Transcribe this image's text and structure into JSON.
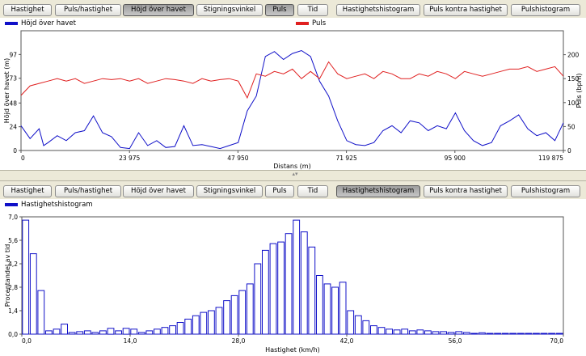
{
  "toolbar_buttons": [
    "Hastighet",
    "Puls/hastighet",
    "Höjd över havet",
    "Stigningsvinkel",
    "Puls",
    "Tid",
    "Hastighetshistogram",
    "Puls kontra hastighet",
    "Pulshistogram"
  ],
  "colors": {
    "elevation": "#1010c8",
    "pulse": "#e02020",
    "histogram": "#1010c8",
    "active_button": "#a8a8a8"
  },
  "top_panel": {
    "active_buttons": [
      "Höjd över havet",
      "Puls"
    ],
    "legend": {
      "elevation": "Höjd över havet",
      "pulse": "Puls"
    }
  },
  "bottom_panel": {
    "active_buttons": [
      "Hastighetshistogram"
    ],
    "legend": {
      "histogram": "Hastighetshistogram"
    }
  },
  "splitter": {
    "grip": "▴▾"
  },
  "chart_data": [
    {
      "type": "line",
      "xlabel": "Distans (m)",
      "ylabel": "Höjd över havet (m)",
      "y2label": "Puls (bpm)",
      "x_ticks": [
        "0",
        "23 975",
        "47 950",
        "71 925",
        "95 900",
        "119 875"
      ],
      "y_ticks": [
        "0",
        "24",
        "48",
        "73",
        "97"
      ],
      "y2_ticks": [
        "0",
        "50",
        "100",
        "150",
        "200"
      ],
      "xlim": [
        0,
        119875
      ],
      "ylim": [
        0,
        121
      ],
      "y2lim": [
        0,
        250
      ],
      "series": [
        {
          "name": "Höjd över havet",
          "axis": "left",
          "x": [
            0,
            2000,
            4000,
            5000,
            6000,
            8000,
            10000,
            12000,
            14000,
            16000,
            18000,
            20000,
            22000,
            24000,
            26000,
            28000,
            30000,
            32000,
            34000,
            36000,
            38000,
            40000,
            42000,
            44000,
            46000,
            48000,
            50000,
            52000,
            54000,
            56000,
            58000,
            60000,
            62000,
            64000,
            66000,
            68000,
            70000,
            72000,
            74000,
            76000,
            78000,
            80000,
            82000,
            84000,
            86000,
            88000,
            90000,
            92000,
            94000,
            96000,
            98000,
            100000,
            102000,
            104000,
            106000,
            108000,
            110000,
            112000,
            114000,
            116000,
            118000,
            119875
          ],
          "values": [
            25,
            12,
            22,
            5,
            8,
            15,
            10,
            18,
            20,
            35,
            18,
            14,
            3,
            2,
            18,
            5,
            10,
            3,
            4,
            25,
            5,
            6,
            4,
            2,
            5,
            8,
            40,
            55,
            95,
            100,
            92,
            98,
            101,
            95,
            70,
            55,
            30,
            10,
            6,
            5,
            8,
            20,
            25,
            18,
            30,
            28,
            20,
            25,
            22,
            38,
            20,
            10,
            5,
            8,
            25,
            30,
            36,
            22,
            15,
            18,
            10,
            28
          ]
        },
        {
          "name": "Puls",
          "axis": "right",
          "x": [
            0,
            2000,
            4000,
            6000,
            8000,
            10000,
            12000,
            14000,
            16000,
            18000,
            20000,
            22000,
            24000,
            26000,
            28000,
            30000,
            32000,
            34000,
            36000,
            38000,
            40000,
            42000,
            44000,
            46000,
            48000,
            50000,
            52000,
            54000,
            56000,
            58000,
            60000,
            62000,
            64000,
            66000,
            68000,
            70000,
            72000,
            74000,
            76000,
            78000,
            80000,
            82000,
            84000,
            86000,
            88000,
            90000,
            92000,
            94000,
            96000,
            98000,
            100000,
            102000,
            104000,
            106000,
            108000,
            110000,
            112000,
            114000,
            116000,
            118000,
            119875
          ],
          "values": [
            115,
            135,
            140,
            145,
            150,
            145,
            150,
            140,
            145,
            150,
            148,
            150,
            145,
            150,
            140,
            145,
            150,
            148,
            145,
            140,
            150,
            145,
            148,
            150,
            145,
            110,
            160,
            155,
            165,
            160,
            170,
            150,
            165,
            150,
            185,
            160,
            150,
            155,
            160,
            150,
            165,
            160,
            150,
            150,
            160,
            155,
            165,
            160,
            150,
            165,
            160,
            155,
            160,
            165,
            170,
            170,
            175,
            165,
            170,
            175,
            155
          ]
        }
      ]
    },
    {
      "type": "bar",
      "title": "Hastighetshistogram",
      "xlabel": "Hastighet (km/h)",
      "ylabel": "Procentandel av tid",
      "x_ticks": [
        "0,0",
        "14,0",
        "28,0",
        "42,0",
        "56,0",
        "70,0"
      ],
      "y_ticks": [
        "0,0",
        "1,4",
        "2,8",
        "4,2",
        "5,6",
        "7,0"
      ],
      "xlim": [
        0,
        70
      ],
      "ylim": [
        0,
        7
      ],
      "categories": [
        0,
        1,
        2,
        3,
        4,
        5,
        6,
        7,
        8,
        9,
        10,
        11,
        12,
        13,
        14,
        15,
        16,
        17,
        18,
        19,
        20,
        21,
        22,
        23,
        24,
        25,
        26,
        27,
        28,
        29,
        30,
        31,
        32,
        33,
        34,
        35,
        36,
        37,
        38,
        39,
        40,
        41,
        42,
        43,
        44,
        45,
        46,
        47,
        48,
        49,
        50,
        51,
        52,
        53,
        54,
        55,
        56,
        57,
        58,
        59,
        60,
        61,
        62,
        63,
        64,
        65,
        66,
        67,
        68,
        69
      ],
      "values": [
        6.8,
        4.8,
        2.6,
        0.2,
        0.3,
        0.6,
        0.1,
        0.15,
        0.2,
        0.1,
        0.2,
        0.35,
        0.2,
        0.35,
        0.3,
        0.1,
        0.2,
        0.3,
        0.4,
        0.5,
        0.7,
        0.9,
        1.1,
        1.3,
        1.4,
        1.6,
        2.0,
        2.3,
        2.6,
        3.0,
        4.2,
        5.0,
        5.4,
        5.5,
        6.0,
        6.8,
        6.1,
        5.2,
        3.5,
        3.0,
        2.8,
        3.1,
        1.4,
        1.1,
        0.8,
        0.5,
        0.4,
        0.3,
        0.25,
        0.3,
        0.2,
        0.25,
        0.2,
        0.15,
        0.15,
        0.1,
        0.15,
        0.1,
        0.05,
        0.08,
        0.05,
        0.05,
        0.05,
        0.05,
        0.05,
        0.05,
        0.05,
        0.05,
        0.05,
        0.05
      ]
    }
  ]
}
